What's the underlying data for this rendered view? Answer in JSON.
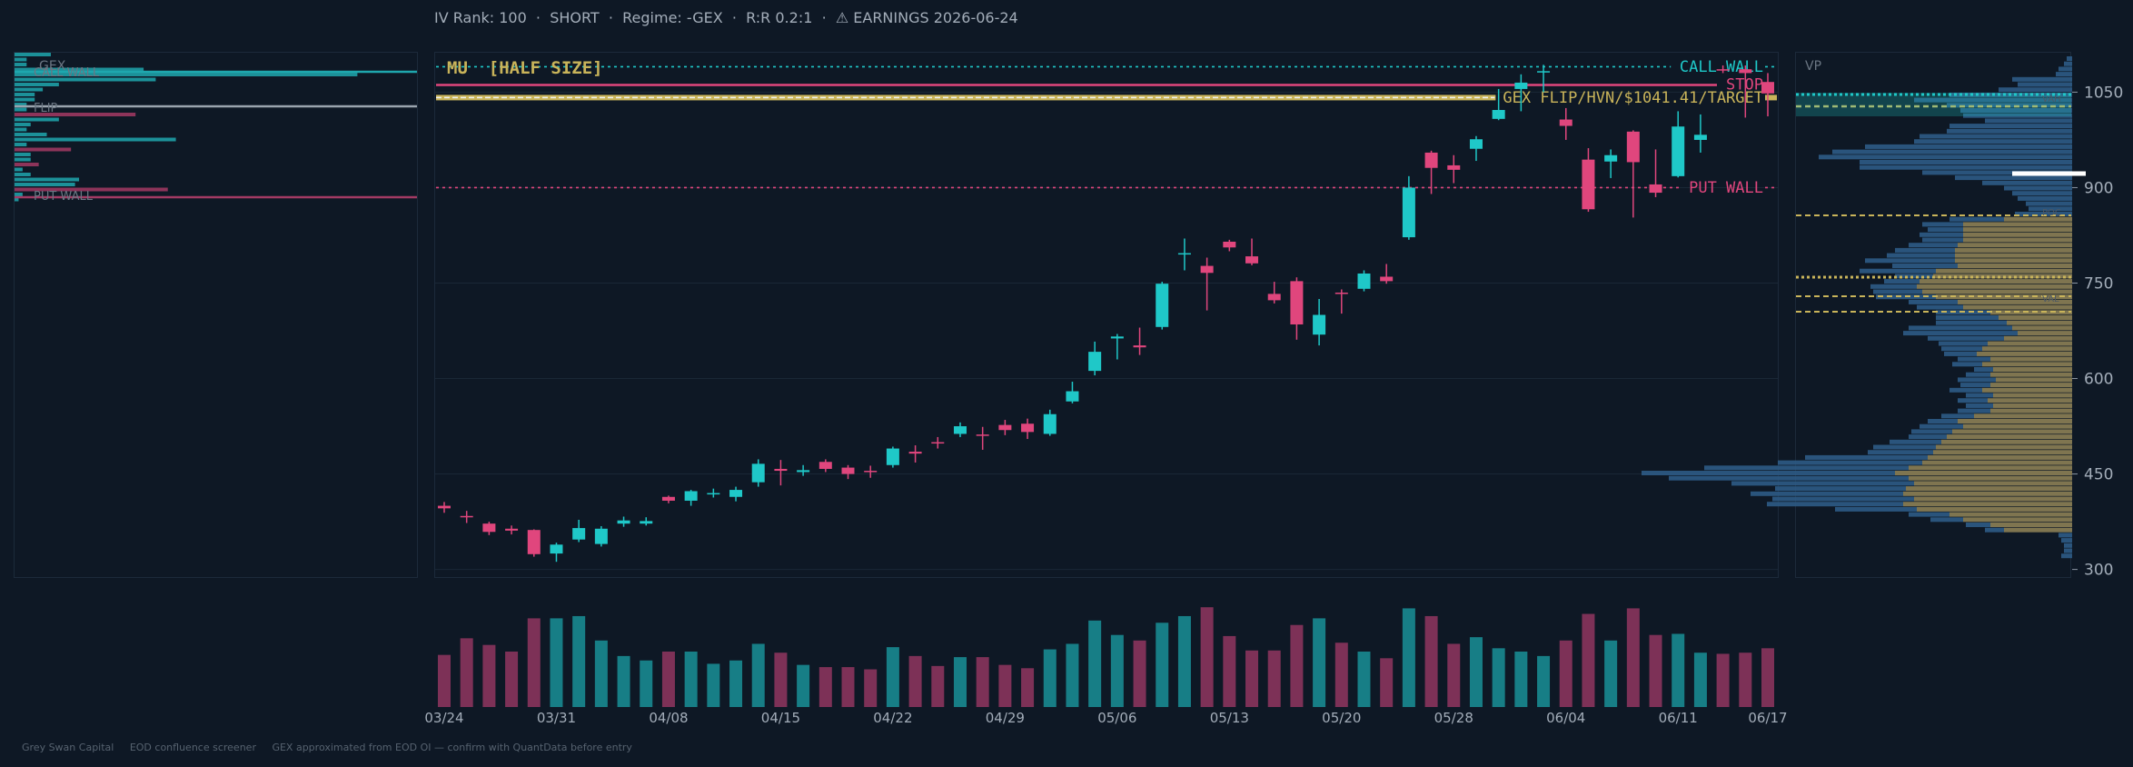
{
  "header": {
    "iv_rank": "IV Rank: 100",
    "direction": "SHORT",
    "regime": "Regime: -GEX",
    "rr": "R:R 0.2:1",
    "earnings": "⚠ EARNINGS 2026-06-24",
    "separator": "·"
  },
  "footer": {
    "brand": "Grey Swan Capital",
    "product": "EOD confluence screener",
    "note": "GEX approximated from EOD OI — confirm with QuantData before entry"
  },
  "gex_panel": {
    "title": "GEX",
    "labels": [
      "CALL WALL",
      "FLIP",
      "PUT WALL"
    ],
    "bars": [
      0.09,
      0.03,
      0.03,
      0.32,
      0.85,
      0.35,
      0.11,
      0.07,
      0.05,
      0.05,
      0.03,
      0.03,
      0.3,
      0.11,
      0.04,
      0.03,
      0.08,
      0.4,
      0.03,
      0.14,
      0.04,
      0.04,
      0.06,
      0.02,
      0.04,
      0.16,
      0.15,
      0.38,
      0.02,
      0.01
    ],
    "bar_signs": [
      1,
      1,
      1,
      1,
      1,
      1,
      1,
      1,
      1,
      1,
      1,
      1,
      -1,
      1,
      1,
      1,
      1,
      1,
      1,
      -1,
      1,
      1,
      -1,
      1,
      1,
      1,
      1,
      -1,
      1,
      1
    ],
    "colors": {
      "call": "#1fa7ae",
      "put": "#a33a64",
      "flip": "#9aa4ae"
    }
  },
  "chart_data": {
    "type": "candlestick",
    "title": "MU  [HALF SIZE]",
    "ticker": "MU",
    "size_tag": "[HALF SIZE]",
    "ylim": [
      288,
      1112
    ],
    "yticks": [
      300,
      450,
      600,
      750,
      900,
      1050
    ],
    "xticks": [
      {
        "i": 0,
        "label": "03/24"
      },
      {
        "i": 5,
        "label": "03/31"
      },
      {
        "i": 10,
        "label": "04/08"
      },
      {
        "i": 15,
        "label": "04/15"
      },
      {
        "i": 20,
        "label": "04/22"
      },
      {
        "i": 25,
        "label": "04/29"
      },
      {
        "i": 30,
        "label": "05/06"
      },
      {
        "i": 35,
        "label": "05/13"
      },
      {
        "i": 40,
        "label": "05/20"
      },
      {
        "i": 45,
        "label": "05/28"
      },
      {
        "i": 50,
        "label": "06/04"
      },
      {
        "i": 55,
        "label": "06/11"
      },
      {
        "i": 59,
        "label": "06/17"
      }
    ],
    "candles": [
      {
        "o": 400,
        "h": 406,
        "l": 389,
        "c": 396
      },
      {
        "o": 384,
        "h": 392,
        "l": 373,
        "c": 382
      },
      {
        "o": 372,
        "h": 375,
        "l": 354,
        "c": 359
      },
      {
        "o": 364,
        "h": 369,
        "l": 355,
        "c": 361
      },
      {
        "o": 362,
        "h": 363,
        "l": 320,
        "c": 324
      },
      {
        "o": 325,
        "h": 342,
        "l": 312,
        "c": 339
      },
      {
        "o": 347,
        "h": 378,
        "l": 343,
        "c": 365
      },
      {
        "o": 340,
        "h": 368,
        "l": 336,
        "c": 364
      },
      {
        "o": 372,
        "h": 383,
        "l": 367,
        "c": 377
      },
      {
        "o": 372,
        "h": 382,
        "l": 369,
        "c": 376
      },
      {
        "o": 414,
        "h": 416,
        "l": 404,
        "c": 408
      },
      {
        "o": 408,
        "h": 425,
        "l": 400,
        "c": 423
      },
      {
        "o": 418,
        "h": 427,
        "l": 413,
        "c": 420
      },
      {
        "o": 414,
        "h": 430,
        "l": 407,
        "c": 425
      },
      {
        "o": 437,
        "h": 473,
        "l": 430,
        "c": 466
      },
      {
        "o": 458,
        "h": 472,
        "l": 432,
        "c": 455
      },
      {
        "o": 453,
        "h": 464,
        "l": 447,
        "c": 456
      },
      {
        "o": 469,
        "h": 473,
        "l": 453,
        "c": 458
      },
      {
        "o": 460,
        "h": 464,
        "l": 442,
        "c": 450
      },
      {
        "o": 455,
        "h": 463,
        "l": 444,
        "c": 453
      },
      {
        "o": 464,
        "h": 493,
        "l": 460,
        "c": 490
      },
      {
        "o": 485,
        "h": 495,
        "l": 468,
        "c": 482
      },
      {
        "o": 500,
        "h": 508,
        "l": 490,
        "c": 498
      },
      {
        "o": 513,
        "h": 531,
        "l": 508,
        "c": 525
      },
      {
        "o": 512,
        "h": 524,
        "l": 488,
        "c": 510
      },
      {
        "o": 527,
        "h": 535,
        "l": 511,
        "c": 519
      },
      {
        "o": 529,
        "h": 537,
        "l": 505,
        "c": 516
      },
      {
        "o": 513,
        "h": 551,
        "l": 510,
        "c": 544
      },
      {
        "o": 564,
        "h": 595,
        "l": 561,
        "c": 580
      },
      {
        "o": 612,
        "h": 658,
        "l": 605,
        "c": 642
      },
      {
        "o": 663,
        "h": 670,
        "l": 630,
        "c": 666
      },
      {
        "o": 652,
        "h": 680,
        "l": 637,
        "c": 649
      },
      {
        "o": 681,
        "h": 752,
        "l": 677,
        "c": 749
      },
      {
        "o": 795,
        "h": 820,
        "l": 770,
        "c": 797
      },
      {
        "o": 777,
        "h": 790,
        "l": 707,
        "c": 766
      },
      {
        "o": 815,
        "h": 818,
        "l": 800,
        "c": 806
      },
      {
        "o": 792,
        "h": 820,
        "l": 778,
        "c": 781
      },
      {
        "o": 733,
        "h": 752,
        "l": 718,
        "c": 723
      },
      {
        "o": 753,
        "h": 759,
        "l": 661,
        "c": 685
      },
      {
        "o": 669,
        "h": 725,
        "l": 652,
        "c": 700
      },
      {
        "o": 735,
        "h": 740,
        "l": 702,
        "c": 734
      },
      {
        "o": 741,
        "h": 770,
        "l": 737,
        "c": 765
      },
      {
        "o": 760,
        "h": 780,
        "l": 749,
        "c": 753
      },
      {
        "o": 822,
        "h": 918,
        "l": 818,
        "c": 900
      },
      {
        "o": 955,
        "h": 958,
        "l": 890,
        "c": 931
      },
      {
        "o": 935,
        "h": 951,
        "l": 907,
        "c": 928
      },
      {
        "o": 961,
        "h": 981,
        "l": 942,
        "c": 976
      },
      {
        "o": 1008,
        "h": 1055,
        "l": 1006,
        "c": 1022
      },
      {
        "o": 1055,
        "h": 1078,
        "l": 1020,
        "c": 1065
      },
      {
        "o": 1082,
        "h": 1093,
        "l": 1050,
        "c": 1083
      },
      {
        "o": 1007,
        "h": 1025,
        "l": 975,
        "c": 997
      },
      {
        "o": 944,
        "h": 962,
        "l": 862,
        "c": 866
      },
      {
        "o": 941,
        "h": 960,
        "l": 915,
        "c": 951
      },
      {
        "o": 988,
        "h": 990,
        "l": 853,
        "c": 940
      },
      {
        "o": 905,
        "h": 960,
        "l": 885,
        "c": 892
      },
      {
        "o": 918,
        "h": 1020,
        "l": 916,
        "c": 996
      },
      {
        "o": 975,
        "h": 1015,
        "l": 955,
        "c": 983
      },
      {
        "o": 1086,
        "h": 1092,
        "l": 1080,
        "c": 1085
      },
      {
        "o": 1086,
        "h": 1092,
        "l": 1010,
        "c": 1080
      },
      {
        "o": 1066,
        "h": 1080,
        "l": 1012,
        "c": 1048
      }
    ],
    "volume": [
      0.47,
      0.62,
      0.56,
      0.5,
      0.8,
      0.8,
      0.82,
      0.6,
      0.46,
      0.42,
      0.5,
      0.5,
      0.39,
      0.42,
      0.57,
      0.49,
      0.38,
      0.36,
      0.36,
      0.34,
      0.54,
      0.46,
      0.37,
      0.45,
      0.45,
      0.38,
      0.35,
      0.52,
      0.57,
      0.78,
      0.65,
      0.6,
      0.76,
      0.82,
      0.9,
      0.64,
      0.51,
      0.51,
      0.74,
      0.8,
      0.58,
      0.5,
      0.44,
      0.89,
      0.82,
      0.57,
      0.63,
      0.53,
      0.5,
      0.46,
      0.6,
      0.84,
      0.6,
      0.89,
      0.65,
      0.66,
      0.49,
      0.48,
      0.49,
      0.53
    ],
    "levels": [
      {
        "name": "call_wall",
        "label": "CALL WALL",
        "price": 1090,
        "color": "#1fc8c8",
        "style": "dotted"
      },
      {
        "name": "stop",
        "label": "STOP",
        "price": 1062,
        "color": "#e0467d",
        "style": "solid"
      },
      {
        "name": "target",
        "label": "GEX FLIP/HVN/$1041.41/TARGET",
        "price": 1041.41,
        "color": "#c9b45a",
        "style": "double"
      },
      {
        "name": "put_wall",
        "label": "PUT WALL",
        "price": 900,
        "color": "#e0467d",
        "style": "dotted"
      }
    ],
    "colors": {
      "up": "#1fc8c8",
      "down": "#e0467d",
      "vol_up": "#177e86",
      "vol_down": "#7d3157",
      "grid": "#1a2736",
      "axis_text": "#a3adb9"
    }
  },
  "vp_panel": {
    "title": "VP",
    "labels": [
      "VAH",
      "POC",
      "VAL"
    ],
    "blue_share": [
      0.02,
      0.03,
      0.05,
      0.06,
      0.22,
      0.2,
      0.27,
      0.45,
      0.58,
      0.46,
      0.41,
      0.4,
      0.32,
      0.45,
      0.46,
      0.56,
      0.58,
      0.76,
      0.88,
      0.93,
      0.78,
      0.78,
      0.55,
      0.43,
      0.33,
      0.25,
      0.22,
      0.2,
      0.17,
      0.16,
      0.21,
      0.2,
      0.15,
      0.13,
      0.16,
      0.15,
      0.18,
      0.22,
      0.25,
      0.33,
      0.24,
      0.28,
      0.14,
      0.13,
      0.17,
      0.18,
      0.22,
      0.18,
      0.17,
      0.2,
      0.23,
      0.26,
      0.38,
      0.42,
      0.28,
      0.18,
      0.15,
      0.12,
      0.12,
      0.11,
      0.07,
      0.09,
      0.14,
      0.11,
      0.12,
      0.1,
      0.11,
      0.1,
      0.12,
      0.12,
      0.11,
      0.16,
      0.15,
      0.14,
      0.19,
      0.23,
      0.24,
      0.45,
      0.53,
      0.75,
      0.93,
      0.88,
      0.67,
      0.48,
      0.56,
      0.52,
      0.5,
      0.3,
      0.15,
      0.12,
      0.09,
      0.07,
      0.05,
      0.04,
      0.03,
      0.03,
      0.04
    ],
    "gold_share": [
      0,
      0,
      0,
      0,
      0,
      0,
      0,
      0,
      0,
      0,
      0,
      0,
      0,
      0,
      0,
      0,
      0,
      0,
      0,
      0,
      0,
      0,
      0,
      0,
      0,
      0,
      0,
      0,
      0,
      0,
      0,
      0.25,
      0.4,
      0.4,
      0.4,
      0.4,
      0.42,
      0.43,
      0.43,
      0.43,
      0.42,
      0.5,
      0.51,
      0.56,
      0.57,
      0.55,
      0.5,
      0.42,
      0.4,
      0.3,
      0.27,
      0.24,
      0.22,
      0.2,
      0.25,
      0.31,
      0.33,
      0.35,
      0.3,
      0.33,
      0.29,
      0.3,
      0.28,
      0.3,
      0.33,
      0.29,
      0.31,
      0.29,
      0.3,
      0.36,
      0.42,
      0.4,
      0.44,
      0.46,
      0.48,
      0.5,
      0.51,
      0.53,
      0.55,
      0.6,
      0.65,
      0.6,
      0.58,
      0.61,
      0.62,
      0.58,
      0.62,
      0.57,
      0.45,
      0.4,
      0.3,
      0.25,
      0,
      0,
      0,
      0,
      0
    ]
  }
}
